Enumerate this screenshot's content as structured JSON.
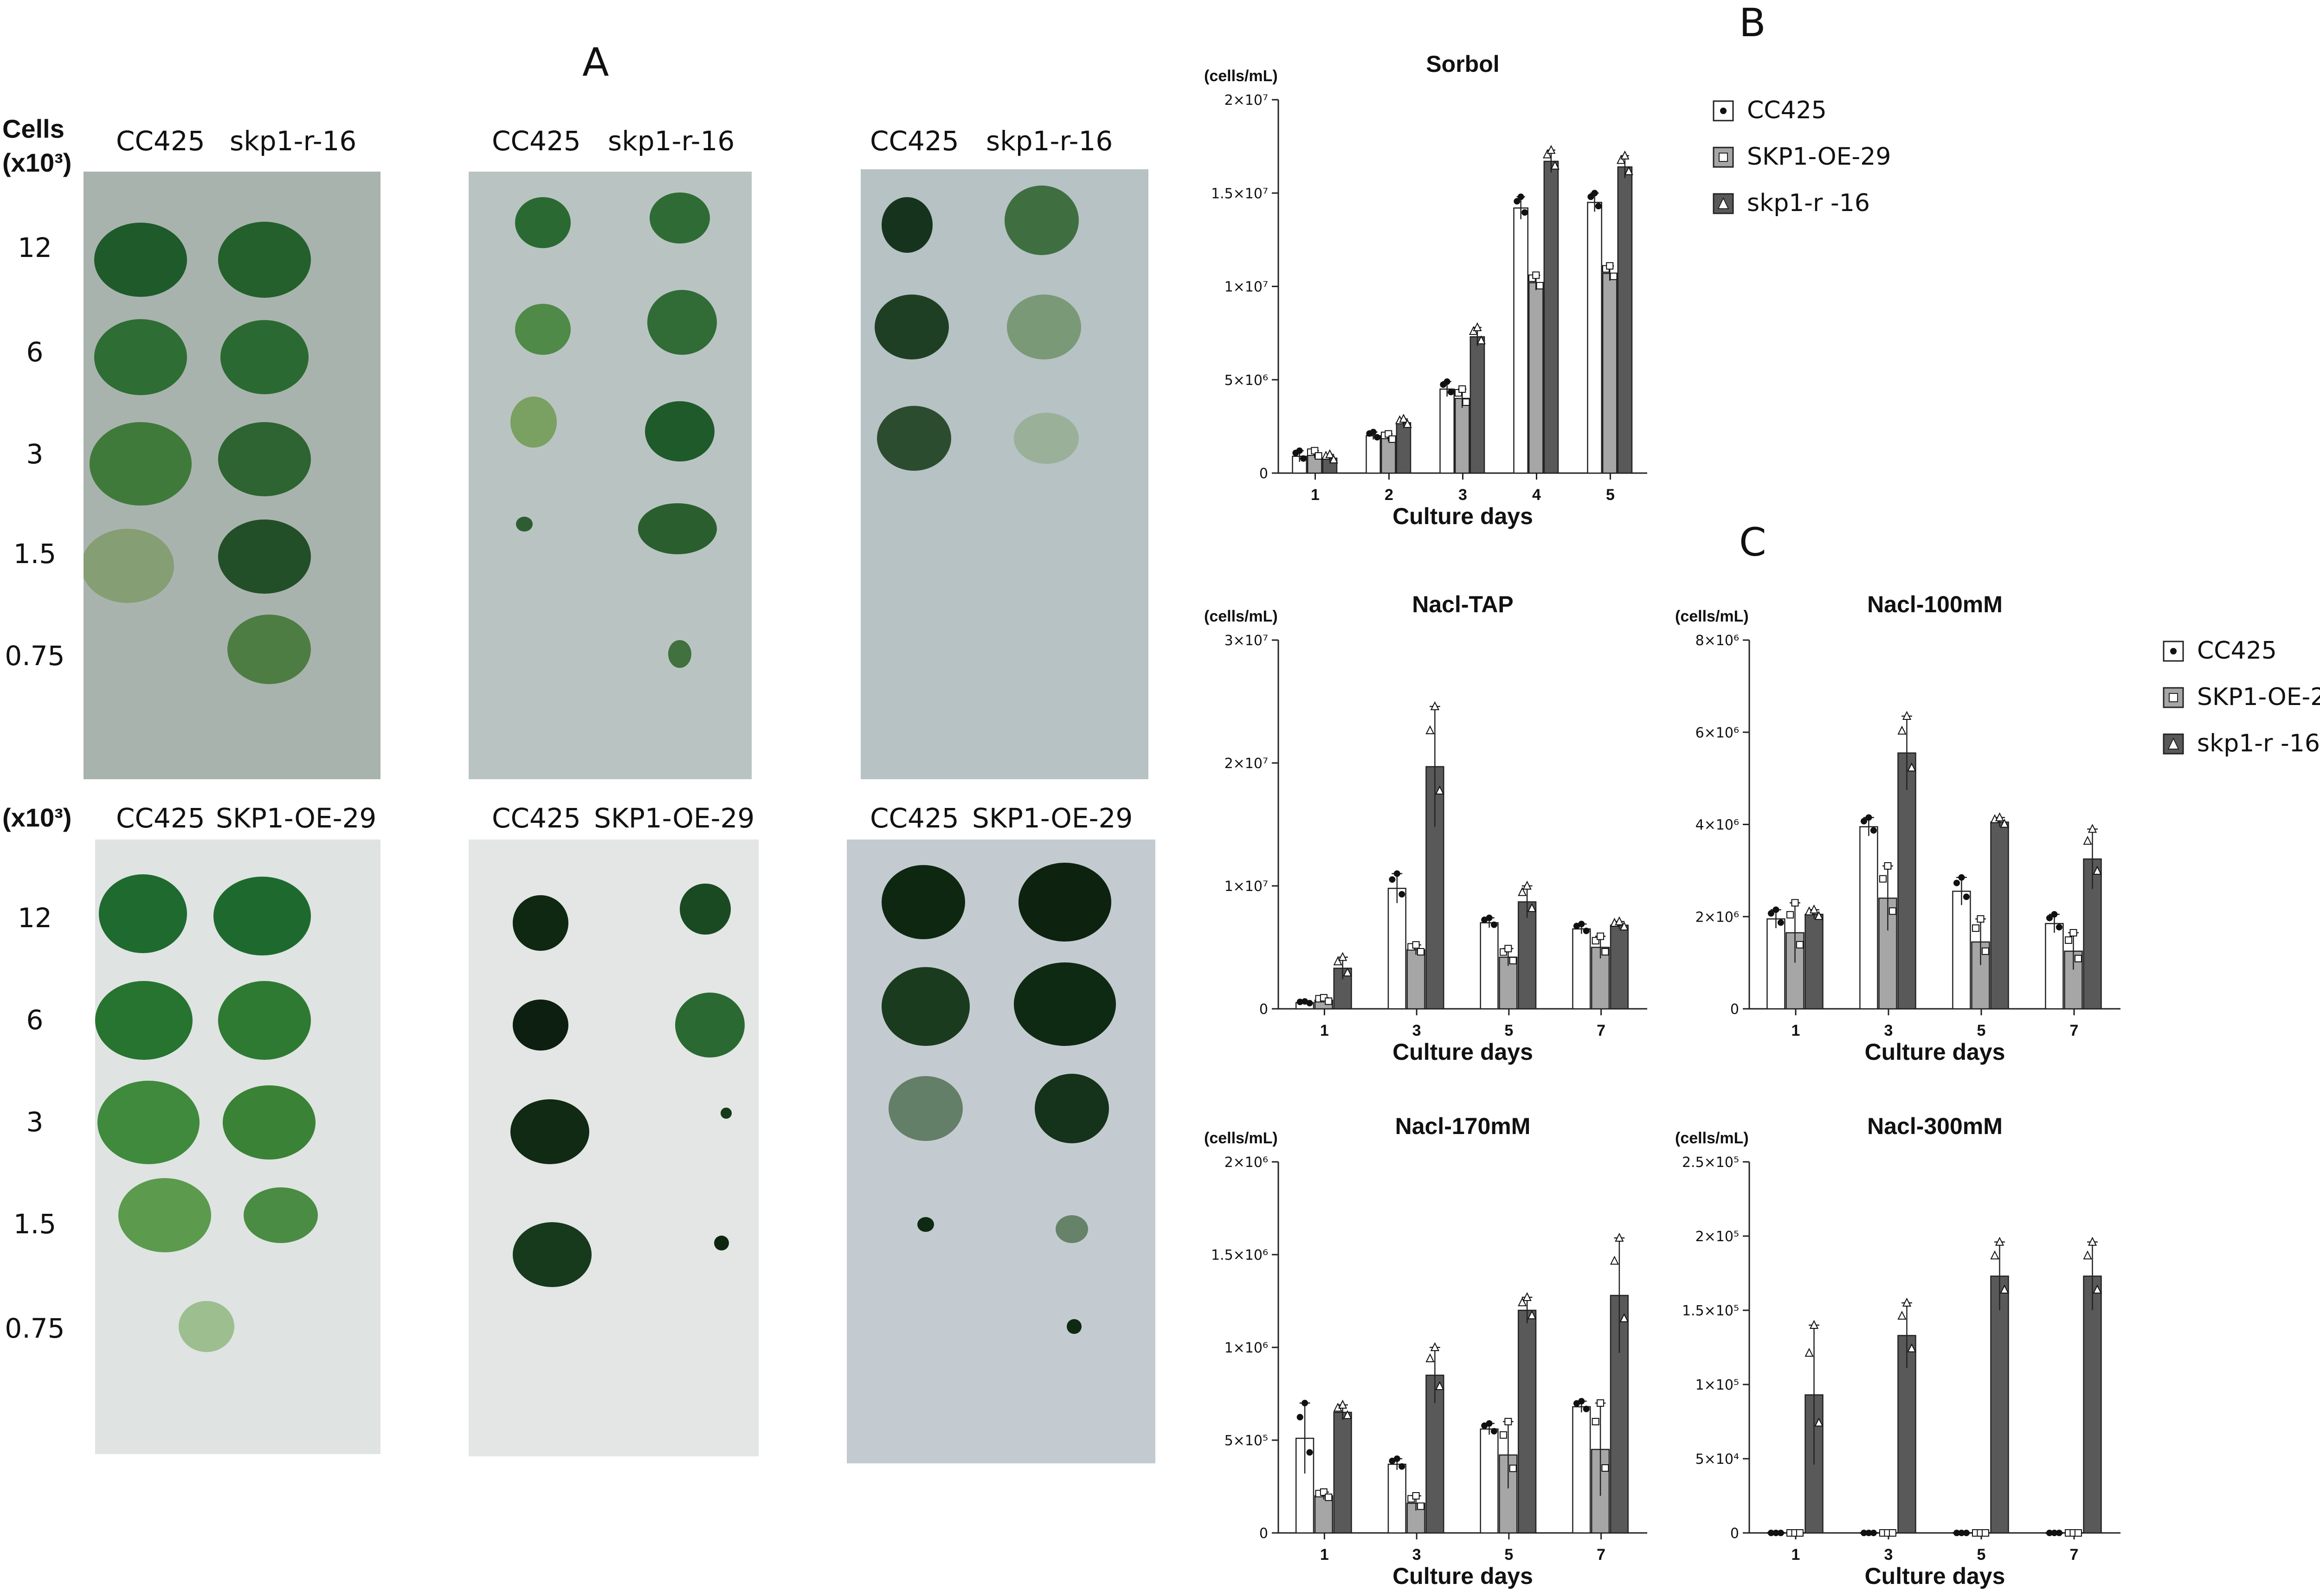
{
  "panel_a": {
    "letter": "A",
    "cells_header": "Cells",
    "unit_top": "(x10³)",
    "unit_bottom": "(x10³)",
    "row_labels": [
      "12",
      "6",
      "3",
      "1.5",
      "0.75"
    ],
    "top_plates": [
      {
        "left": "CC425",
        "right": "skp1-r-16",
        "bg": "#a9b3ae"
      },
      {
        "left": "CC425",
        "right": "skp1-r-16",
        "bg": "#b9c4c2"
      },
      {
        "left": "CC425",
        "right": "skp1-r-16",
        "bg": "#b6c2c4"
      }
    ],
    "bottom_plates": [
      {
        "left": "CC425",
        "right": "SKP1-OE-29",
        "bg": "#dfe3e2"
      },
      {
        "left": "CC425",
        "right": "SKP1-OE-29",
        "bg": "#e3e6e5"
      },
      {
        "left": "CC425",
        "right": "SKP1-OE-29",
        "bg": "#c3cbd0"
      }
    ]
  },
  "panel_b": {
    "letter": "B"
  },
  "panel_c": {
    "letter": "C"
  },
  "legend": {
    "items": [
      {
        "label": "CC425",
        "fill": "#ffffff",
        "marker": "circle"
      },
      {
        "label": "SKP1-OE-29",
        "fill": "#a6a6a6",
        "marker": "square"
      },
      {
        "label": "skp1-r -16",
        "fill": "#595959",
        "marker": "triangle"
      }
    ]
  },
  "chart_data": [
    {
      "type": "bar",
      "title": "Sorbol",
      "ylabel": "(cells/mL)",
      "xlabel": "Culture days",
      "categories": [
        "1",
        "2",
        "3",
        "4",
        "5"
      ],
      "ylim": [
        0,
        20000000
      ],
      "yticks": [
        {
          "value": 0,
          "label": "0"
        },
        {
          "value": 5000000,
          "label": "5×10⁶"
        },
        {
          "value": 10000000,
          "label": "1×10⁷"
        },
        {
          "value": 15000000,
          "label": "1.5×10⁷"
        },
        {
          "value": 20000000,
          "label": "2×10⁷"
        }
      ],
      "series": [
        {
          "name": "CC425",
          "values": [
            900000,
            2000000,
            4500000,
            14200000,
            14500000
          ],
          "errors": [
            300000,
            200000,
            400000,
            600000,
            500000
          ]
        },
        {
          "name": "SKP1-OE-29",
          "values": [
            1000000,
            1900000,
            4000000,
            10200000,
            10700000
          ],
          "errors": [
            200000,
            200000,
            500000,
            400000,
            400000
          ]
        },
        {
          "name": "skp1-r -16",
          "values": [
            800000,
            2700000,
            7300000,
            16700000,
            16400000
          ],
          "errors": [
            200000,
            200000,
            500000,
            600000,
            600000
          ]
        }
      ]
    },
    {
      "type": "bar",
      "title": "Nacl-TAP",
      "ylabel": "(cells/mL)",
      "xlabel": "Culture days",
      "categories": [
        "1",
        "3",
        "5",
        "7"
      ],
      "ylim": [
        0,
        30000000
      ],
      "yticks": [
        {
          "value": 0,
          "label": "0"
        },
        {
          "value": 10000000,
          "label": "1×10⁷"
        },
        {
          "value": 20000000,
          "label": "2×10⁷"
        },
        {
          "value": 30000000,
          "label": "3×10⁷"
        }
      ],
      "series": [
        {
          "name": "CC425",
          "values": [
            500000,
            9800000,
            7000000,
            6500000
          ],
          "errors": [
            100000,
            1200000,
            400000,
            400000
          ]
        },
        {
          "name": "SKP1-OE-29",
          "values": [
            700000,
            4800000,
            4200000,
            5000000
          ],
          "errors": [
            200000,
            400000,
            700000,
            900000
          ]
        },
        {
          "name": "skp1-r -16",
          "values": [
            3300000,
            19700000,
            8700000,
            6800000
          ],
          "errors": [
            900000,
            4900000,
            1300000,
            300000
          ]
        }
      ]
    },
    {
      "type": "bar",
      "title": "Nacl-100mM",
      "ylabel": "(cells/mL)",
      "xlabel": "Culture days",
      "categories": [
        "1",
        "3",
        "5",
        "7"
      ],
      "ylim": [
        0,
        8000000
      ],
      "yticks": [
        {
          "value": 0,
          "label": "0"
        },
        {
          "value": 2000000,
          "label": "2×10⁶"
        },
        {
          "value": 4000000,
          "label": "4×10⁶"
        },
        {
          "value": 6000000,
          "label": "6×10⁶"
        },
        {
          "value": 8000000,
          "label": "8×10⁶"
        }
      ],
      "series": [
        {
          "name": "CC425",
          "values": [
            1950000,
            3950000,
            2550000,
            1850000
          ],
          "errors": [
            200000,
            200000,
            300000,
            200000
          ]
        },
        {
          "name": "SKP1-OE-29",
          "values": [
            1650000,
            2400000,
            1450000,
            1250000
          ],
          "errors": [
            650000,
            700000,
            500000,
            400000
          ]
        },
        {
          "name": "skp1-r -16",
          "values": [
            2050000,
            5550000,
            4050000,
            3250000
          ],
          "errors": [
            100000,
            800000,
            100000,
            650000
          ]
        }
      ]
    },
    {
      "type": "bar",
      "title": "Nacl-170mM",
      "ylabel": "(cells/mL)",
      "xlabel": "Culture days",
      "categories": [
        "1",
        "3",
        "5",
        "7"
      ],
      "ylim": [
        0,
        2000000
      ],
      "yticks": [
        {
          "value": 0,
          "label": "0"
        },
        {
          "value": 500000,
          "label": "5×10⁵"
        },
        {
          "value": 1000000,
          "label": "1×10⁶"
        },
        {
          "value": 1500000,
          "label": "1.5×10⁶"
        },
        {
          "value": 2000000,
          "label": "2×10⁶"
        }
      ],
      "series": [
        {
          "name": "CC425",
          "values": [
            510000,
            370000,
            560000,
            680000
          ],
          "errors": [
            190000,
            30000,
            30000,
            30000
          ]
        },
        {
          "name": "SKP1-OE-29",
          "values": [
            200000,
            160000,
            420000,
            450000
          ],
          "errors": [
            20000,
            40000,
            180000,
            250000
          ]
        },
        {
          "name": "skp1-r -16",
          "values": [
            650000,
            850000,
            1200000,
            1280000
          ],
          "errors": [
            40000,
            150000,
            70000,
            310000
          ]
        }
      ]
    },
    {
      "type": "bar",
      "title": "Nacl-300mM",
      "ylabel": "(cells/mL)",
      "xlabel": "Culture days",
      "categories": [
        "1",
        "3",
        "5",
        "7"
      ],
      "ylim": [
        0,
        250000
      ],
      "yticks": [
        {
          "value": 0,
          "label": "0"
        },
        {
          "value": 50000,
          "label": "5×10⁴"
        },
        {
          "value": 100000,
          "label": "1×10⁵"
        },
        {
          "value": 150000,
          "label": "1.5×10⁵"
        },
        {
          "value": 200000,
          "label": "2×10⁵"
        },
        {
          "value": 250000,
          "label": "2.5×10⁵"
        }
      ],
      "series": [
        {
          "name": "CC425",
          "values": [
            0,
            0,
            0,
            0
          ],
          "errors": [
            0,
            0,
            0,
            0
          ]
        },
        {
          "name": "SKP1-OE-29",
          "values": [
            0,
            0,
            0,
            0
          ],
          "errors": [
            0,
            0,
            0,
            0
          ]
        },
        {
          "name": "skp1-r -16",
          "values": [
            93000,
            133000,
            173000,
            173000
          ],
          "errors": [
            47000,
            22000,
            23000,
            23000
          ]
        }
      ]
    }
  ]
}
